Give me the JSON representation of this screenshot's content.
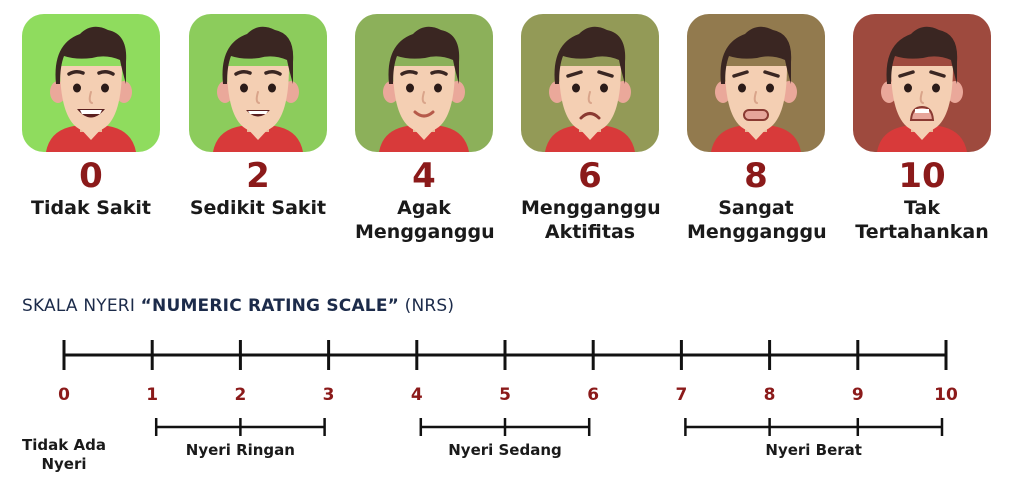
{
  "faces": [
    {
      "score": "0",
      "label": "Tidak Sakit",
      "bg": "#8fdc5e",
      "mouth": "big-smile"
    },
    {
      "score": "2",
      "label": "Sedikit Sakit",
      "bg": "#8ccc5c",
      "mouth": "smile"
    },
    {
      "score": "4",
      "label": "Agak\nMengganggu",
      "bg": "#8cb05a",
      "mouth": "slight-smile"
    },
    {
      "score": "6",
      "label": "Mengganggu\nAktifitas",
      "bg": "#939a57",
      "mouth": "frown"
    },
    {
      "score": "8",
      "label": "Sangat\nMengganggu",
      "bg": "#927a4e",
      "mouth": "grimace"
    },
    {
      "score": "10",
      "label": "Tak\nTertahankan",
      "bg": "#9e4a3e",
      "mouth": "open-cry"
    }
  ],
  "scale": {
    "title_prefix": "SKALA NYERI ",
    "title_bold": "“NUMERIC RATING SCALE”",
    "title_suffix": " (NRS)",
    "ticks": [
      "0",
      "1",
      "2",
      "3",
      "4",
      "5",
      "6",
      "7",
      "8",
      "9",
      "10"
    ],
    "ranges": [
      {
        "label": "Tidak Ada\nNyeri",
        "from": 0,
        "to": 0
      },
      {
        "label": "Nyeri Ringan",
        "from": 1,
        "to": 3
      },
      {
        "label": "Nyeri Sedang",
        "from": 4,
        "to": 6
      },
      {
        "label": "Nyeri Berat",
        "from": 7,
        "to": 10
      }
    ]
  },
  "colors": {
    "number": "#8b1a1a",
    "line": "#111111",
    "title": "#1c2b4a",
    "skin": "#f4cfb3",
    "hair": "#3a2622",
    "shirt": "#d83a3a"
  }
}
